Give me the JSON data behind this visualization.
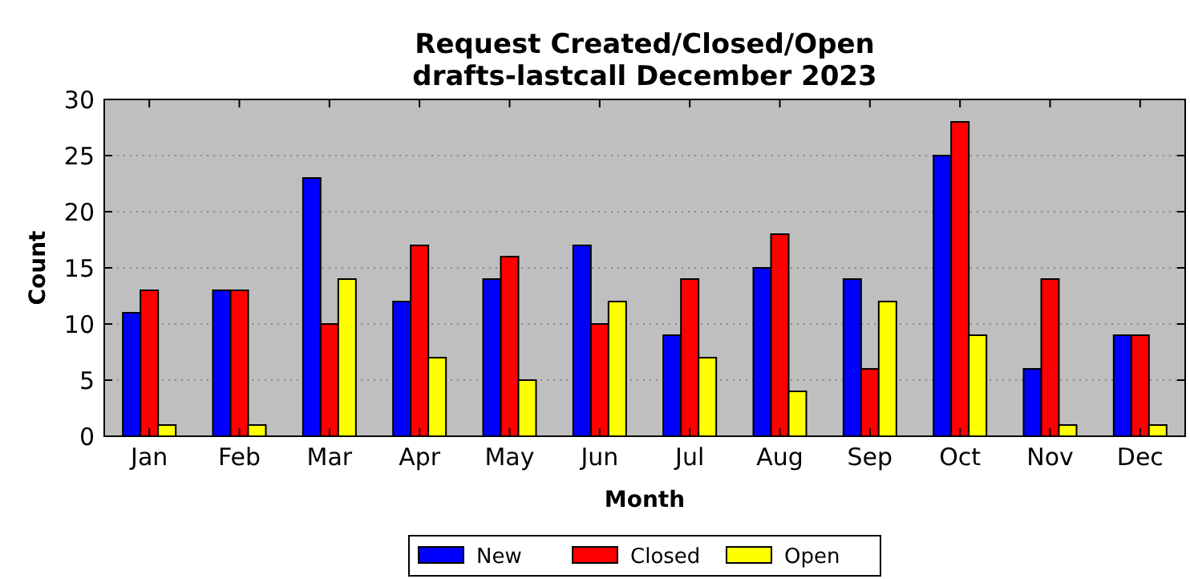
{
  "chart_data": {
    "type": "bar",
    "title": "Request Created/Closed/Open\ndrafts-lastcall December 2023",
    "xlabel": "Month",
    "ylabel": "Count",
    "categories": [
      "Jan",
      "Feb",
      "Mar",
      "Apr",
      "May",
      "Jun",
      "Jul",
      "Aug",
      "Sep",
      "Oct",
      "Nov",
      "Dec"
    ],
    "series": [
      {
        "name": "New",
        "color": "#0000ff",
        "values": [
          11,
          13,
          23,
          12,
          14,
          17,
          9,
          15,
          14,
          25,
          6,
          9
        ]
      },
      {
        "name": "Closed",
        "color": "#ff0000",
        "values": [
          13,
          13,
          10,
          17,
          16,
          10,
          14,
          18,
          6,
          28,
          14,
          9
        ]
      },
      {
        "name": "Open",
        "color": "#ffff00",
        "values": [
          1,
          1,
          14,
          7,
          5,
          12,
          7,
          4,
          12,
          9,
          1,
          1
        ]
      }
    ],
    "ylim": [
      0,
      30
    ],
    "yticks": [
      0,
      5,
      10,
      15,
      20,
      25,
      30
    ],
    "grid": "y",
    "legend": "bottom"
  }
}
